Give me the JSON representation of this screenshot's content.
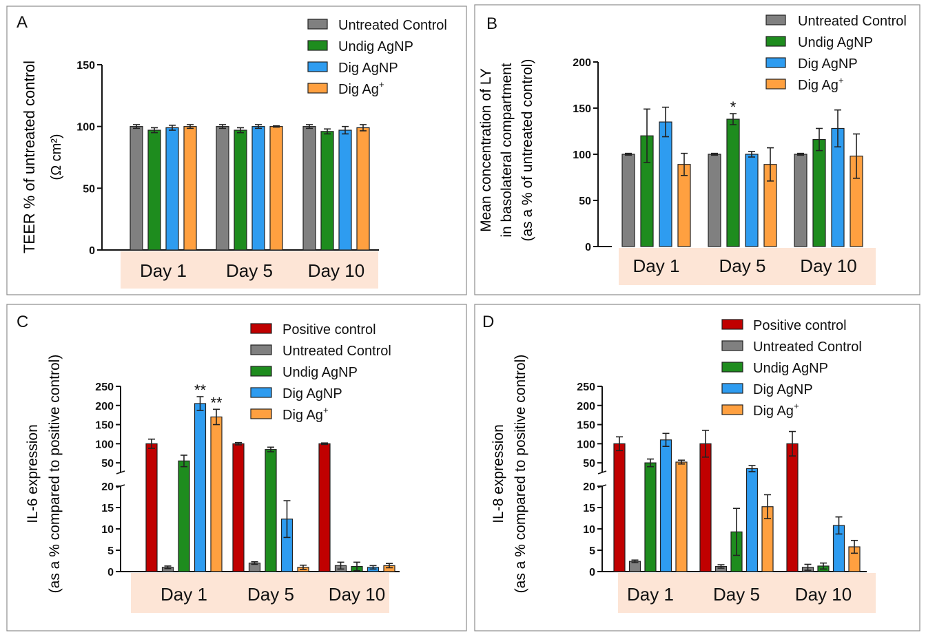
{
  "colors": {
    "positive": "#c00000",
    "untreated": "#808080",
    "undig": "#1e8c1e",
    "dig_agnp": "#2e9cf0",
    "dig_ag": "#ffa040",
    "day_band": "#fde5d6",
    "panel_border": "#8c8c8c"
  },
  "chart_data": [
    {
      "panel": "A",
      "type": "bar",
      "ylabel_line1": "TEER % of untreated control",
      "ylabel_line2": "(Ω cm²)",
      "categories": [
        "Day 1",
        "Day 5",
        "Day 10"
      ],
      "ylim": [
        0,
        150
      ],
      "yticks": [
        0,
        50,
        100,
        150
      ],
      "legend": [
        "Untreated Control",
        "Undig AgNP",
        "Dig AgNP",
        "Dig Ag+"
      ],
      "series": [
        {
          "name": "Untreated Control",
          "color_key": "untreated",
          "values": [
            100,
            100,
            100
          ],
          "errors": [
            1.5,
            1.5,
            1.5
          ]
        },
        {
          "name": "Undig AgNP",
          "color_key": "undig",
          "values": [
            97,
            97,
            96
          ],
          "errors": [
            2,
            2,
            2
          ]
        },
        {
          "name": "Dig AgNP",
          "color_key": "dig_agnp",
          "values": [
            99,
            100,
            97
          ],
          "errors": [
            2,
            1.5,
            3
          ]
        },
        {
          "name": "Dig Ag+",
          "color_key": "dig_ag",
          "values": [
            100,
            100,
            99
          ],
          "errors": [
            1.5,
            0.5,
            2.5
          ]
        }
      ],
      "annotations": []
    },
    {
      "panel": "B",
      "type": "bar",
      "ylabel_line1": "Mean concentration of LY",
      "ylabel_line2": "in basolateral compartment",
      "ylabel_line3": "(as a % of untreated control)",
      "categories": [
        "Day 1",
        "Day 5",
        "Day 10"
      ],
      "ylim": [
        0,
        200
      ],
      "yticks": [
        0,
        50,
        100,
        150,
        200
      ],
      "legend": [
        "Untreated Control",
        "Undig AgNP",
        "Dig AgNP",
        "Dig Ag+"
      ],
      "series": [
        {
          "name": "Untreated Control",
          "color_key": "untreated",
          "values": [
            100,
            100,
            100
          ],
          "errors": [
            1,
            1,
            1
          ]
        },
        {
          "name": "Undig AgNP",
          "color_key": "undig",
          "values": [
            120,
            138,
            116
          ],
          "errors": [
            29,
            6,
            12
          ]
        },
        {
          "name": "Dig AgNP",
          "color_key": "dig_agnp",
          "values": [
            135,
            100,
            128
          ],
          "errors": [
            16,
            3,
            20
          ]
        },
        {
          "name": "Dig Ag+",
          "color_key": "dig_ag",
          "values": [
            89,
            89,
            98
          ],
          "errors": [
            12,
            18,
            24
          ]
        }
      ],
      "annotations": [
        {
          "text": "*",
          "category": 1,
          "series": 1
        }
      ]
    },
    {
      "panel": "C",
      "type": "bar",
      "broken_axis": true,
      "ylabel_line1": "IL-6 expression",
      "ylabel_line2": "(as a % compared to positive control)",
      "categories": [
        "Day 1",
        "Day 5",
        "Day 10"
      ],
      "lower_ylim": [
        0,
        20
      ],
      "lower_yticks": [
        0,
        5,
        10,
        15,
        20
      ],
      "upper_ylim": [
        25,
        250
      ],
      "upper_yticks": [
        50,
        100,
        150,
        200,
        250
      ],
      "legend": [
        "Positive control",
        "Untreated Control",
        "Undig AgNP",
        "Dig AgNP",
        "Dig Ag+"
      ],
      "series": [
        {
          "name": "Positive control",
          "color_key": "positive",
          "values": [
            100,
            100,
            100
          ],
          "errors": [
            12,
            3,
            2
          ]
        },
        {
          "name": "Untreated Control",
          "color_key": "untreated",
          "values": [
            1,
            2,
            1.4
          ],
          "errors": [
            0.3,
            0.3,
            0.8
          ]
        },
        {
          "name": "Undig AgNP",
          "color_key": "undig",
          "values": [
            55,
            85,
            1.2
          ],
          "errors": [
            15,
            6,
            1
          ]
        },
        {
          "name": "Dig AgNP",
          "color_key": "dig_agnp",
          "values": [
            205,
            12.3,
            1
          ],
          "errors": [
            18,
            4.3,
            0.4
          ]
        },
        {
          "name": "Dig Ag+",
          "color_key": "dig_ag",
          "values": [
            170,
            1,
            1.4
          ],
          "errors": [
            20,
            0.5,
            0.5
          ]
        }
      ],
      "annotations": [
        {
          "text": "**",
          "category": 0,
          "series": 3
        },
        {
          "text": "**",
          "category": 0,
          "series": 4
        }
      ]
    },
    {
      "panel": "D",
      "type": "bar",
      "broken_axis": true,
      "ylabel_line1": "IL-8 expression",
      "ylabel_line2": "(as a % compared to positive control)",
      "categories": [
        "Day 1",
        "Day 5",
        "Day 10"
      ],
      "lower_ylim": [
        0,
        20
      ],
      "lower_yticks": [
        0,
        5,
        10,
        15,
        20
      ],
      "upper_ylim": [
        25,
        250
      ],
      "upper_yticks": [
        50,
        100,
        150,
        200,
        250
      ],
      "legend": [
        "Positive control",
        "Untreated Control",
        "Undig AgNP",
        "Dig AgNP",
        "Dig Ag+"
      ],
      "series": [
        {
          "name": "Positive control",
          "color_key": "positive",
          "values": [
            100,
            100,
            100
          ],
          "errors": [
            18,
            35,
            32
          ]
        },
        {
          "name": "Untreated Control",
          "color_key": "untreated",
          "values": [
            2.4,
            1.2,
            1
          ],
          "errors": [
            0.3,
            0.4,
            0.7
          ]
        },
        {
          "name": "Undig AgNP",
          "color_key": "undig",
          "values": [
            50,
            9.3,
            1.3
          ],
          "errors": [
            10,
            5.5,
            0.7
          ]
        },
        {
          "name": "Dig AgNP",
          "color_key": "dig_agnp",
          "values": [
            110,
            35,
            10.8
          ],
          "errors": [
            17,
            8,
            2
          ]
        },
        {
          "name": "Dig Ag+",
          "color_key": "dig_ag",
          "values": [
            52,
            15.2,
            5.8
          ],
          "errors": [
            5,
            2.8,
            1.5
          ]
        }
      ],
      "annotations": []
    }
  ]
}
